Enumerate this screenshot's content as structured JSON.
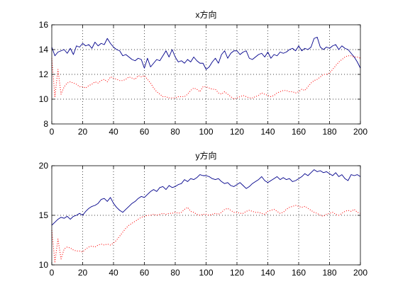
{
  "figure": {
    "background": "#ffffff",
    "axes_color": "#000000",
    "grid_color": "#000000",
    "series_colors": [
      "#00008b",
      "#ff0000"
    ]
  },
  "chart_data": [
    {
      "type": "line",
      "title": "x方向",
      "xlabel": "",
      "ylabel": "",
      "xlim": [
        0,
        200
      ],
      "ylim": [
        8,
        16
      ],
      "xticks": [
        0,
        20,
        40,
        60,
        80,
        100,
        120,
        140,
        160,
        180,
        200
      ],
      "yticks": [
        8,
        10,
        12,
        14,
        16
      ],
      "grid": true,
      "series": [
        {
          "style": "solid",
          "color": "#00008b",
          "x": [
            0,
            2,
            4,
            6,
            8,
            10,
            12,
            14,
            16,
            18,
            20,
            22,
            24,
            26,
            28,
            30,
            32,
            34,
            36,
            38,
            40,
            42,
            44,
            46,
            48,
            50,
            52,
            54,
            56,
            58,
            60,
            62,
            64,
            66,
            68,
            70,
            72,
            74,
            76,
            78,
            80,
            82,
            84,
            86,
            88,
            90,
            92,
            94,
            96,
            98,
            100,
            102,
            104,
            106,
            108,
            110,
            112,
            114,
            116,
            118,
            120,
            122,
            124,
            126,
            128,
            130,
            132,
            134,
            136,
            138,
            140,
            142,
            144,
            146,
            148,
            150,
            152,
            154,
            156,
            158,
            160,
            162,
            164,
            166,
            168,
            170,
            172,
            174,
            176,
            178,
            180,
            182,
            184,
            186,
            188,
            190,
            192,
            194,
            196,
            198,
            200
          ],
          "y": [
            14.2,
            13.5,
            13.8,
            13.9,
            14.0,
            13.7,
            14.1,
            13.6,
            14.3,
            14.2,
            14.5,
            14.3,
            14.4,
            14.1,
            14.6,
            14.3,
            14.5,
            14.4,
            14.9,
            14.5,
            14.2,
            14.0,
            13.9,
            13.5,
            13.6,
            13.4,
            13.2,
            13.1,
            13.3,
            13.2,
            12.5,
            13.3,
            12.6,
            12.9,
            13.2,
            13.1,
            13.5,
            13.9,
            13.4,
            14.0,
            13.4,
            13.0,
            13.1,
            12.9,
            13.2,
            13.0,
            13.4,
            13.1,
            12.9,
            12.9,
            12.4,
            12.6,
            13.0,
            13.3,
            12.9,
            13.6,
            13.9,
            13.3,
            13.7,
            13.9,
            13.9,
            13.6,
            13.8,
            13.9,
            13.3,
            13.2,
            13.4,
            13.6,
            13.7,
            13.4,
            13.8,
            13.3,
            13.6,
            13.5,
            13.8,
            13.7,
            13.8,
            14.0,
            14.1,
            13.9,
            14.3,
            13.9,
            14.1,
            14.0,
            14.2,
            14.9,
            15.0,
            14.2,
            14.0,
            14.2,
            14.1,
            14.3,
            14.4,
            14.0,
            14.3,
            14.1,
            14.0,
            13.7,
            13.4,
            13.0,
            12.5
          ]
        },
        {
          "style": "dotted",
          "color": "#ff0000",
          "x": [
            0,
            2,
            4,
            6,
            8,
            10,
            12,
            14,
            16,
            18,
            20,
            22,
            24,
            26,
            28,
            30,
            32,
            34,
            36,
            38,
            40,
            42,
            44,
            46,
            48,
            50,
            52,
            54,
            56,
            58,
            60,
            62,
            64,
            66,
            68,
            70,
            72,
            74,
            76,
            78,
            80,
            82,
            84,
            86,
            88,
            90,
            92,
            94,
            96,
            98,
            100,
            102,
            104,
            106,
            108,
            110,
            112,
            114,
            116,
            118,
            120,
            122,
            124,
            126,
            128,
            130,
            132,
            134,
            136,
            138,
            140,
            142,
            144,
            146,
            148,
            150,
            152,
            154,
            156,
            158,
            160,
            162,
            164,
            166,
            168,
            170,
            172,
            174,
            176,
            178,
            180,
            182,
            184,
            186,
            188,
            190,
            192,
            194,
            196,
            198,
            200
          ],
          "y": [
            13.3,
            10.2,
            12.4,
            10.4,
            11.0,
            11.3,
            11.4,
            11.3,
            11.2,
            11.0,
            11.0,
            10.9,
            11.1,
            11.2,
            11.4,
            11.3,
            11.5,
            11.6,
            11.4,
            11.8,
            11.7,
            11.6,
            11.5,
            11.5,
            11.6,
            11.8,
            11.7,
            11.6,
            11.9,
            11.8,
            11.9,
            11.6,
            11.3,
            10.9,
            10.6,
            10.4,
            10.2,
            10.2,
            10.1,
            10.1,
            10.1,
            10.2,
            10.2,
            10.2,
            10.4,
            10.7,
            10.9,
            10.8,
            10.6,
            11.0,
            11.0,
            10.9,
            10.8,
            10.8,
            10.5,
            10.4,
            10.6,
            10.4,
            10.2,
            10.0,
            10.1,
            10.2,
            10.3,
            10.2,
            10.1,
            10.1,
            10.2,
            10.3,
            10.5,
            10.4,
            10.3,
            10.2,
            10.3,
            10.5,
            10.6,
            10.7,
            10.7,
            10.6,
            10.6,
            10.5,
            10.6,
            10.8,
            10.7,
            11.0,
            11.3,
            11.5,
            11.6,
            11.8,
            12.0,
            12.0,
            12.1,
            12.4,
            12.7,
            13.0,
            13.2,
            13.4,
            13.5,
            13.5,
            13.4,
            13.4,
            13.3
          ]
        }
      ]
    },
    {
      "type": "line",
      "title": "y方向",
      "xlabel": "",
      "ylabel": "",
      "xlim": [
        0,
        200
      ],
      "ylim": [
        10,
        20
      ],
      "xticks": [
        0,
        20,
        40,
        60,
        80,
        100,
        120,
        140,
        160,
        180,
        200
      ],
      "yticks": [
        10,
        15,
        20
      ],
      "grid": true,
      "series": [
        {
          "style": "solid",
          "color": "#00008b",
          "x": [
            0,
            2,
            4,
            6,
            8,
            10,
            12,
            14,
            16,
            18,
            20,
            22,
            24,
            26,
            28,
            30,
            32,
            34,
            36,
            38,
            40,
            42,
            44,
            46,
            48,
            50,
            52,
            54,
            56,
            58,
            60,
            62,
            64,
            66,
            68,
            70,
            72,
            74,
            76,
            78,
            80,
            82,
            84,
            86,
            88,
            90,
            92,
            94,
            96,
            98,
            100,
            102,
            104,
            106,
            108,
            110,
            112,
            114,
            116,
            118,
            120,
            122,
            124,
            126,
            128,
            130,
            132,
            134,
            136,
            138,
            140,
            142,
            144,
            146,
            148,
            150,
            152,
            154,
            156,
            158,
            160,
            162,
            164,
            166,
            168,
            170,
            172,
            174,
            176,
            178,
            180,
            182,
            184,
            186,
            188,
            190,
            192,
            194,
            196,
            198,
            200
          ],
          "y": [
            14.0,
            14.3,
            14.6,
            14.8,
            14.7,
            14.9,
            14.6,
            14.9,
            15.0,
            15.2,
            15.0,
            15.4,
            15.7,
            15.9,
            16.0,
            16.2,
            16.6,
            16.7,
            16.4,
            16.8,
            16.2,
            15.8,
            15.5,
            15.3,
            15.6,
            15.9,
            16.2,
            16.4,
            16.7,
            16.9,
            16.8,
            17.1,
            17.4,
            17.6,
            17.4,
            17.8,
            17.9,
            17.6,
            18.0,
            17.8,
            17.9,
            18.1,
            18.2,
            18.6,
            18.4,
            18.7,
            18.6,
            18.8,
            19.1,
            19.0,
            19.0,
            18.9,
            18.7,
            18.6,
            18.7,
            18.4,
            18.2,
            18.3,
            18.0,
            17.9,
            18.1,
            18.3,
            18.0,
            17.7,
            17.9,
            18.2,
            18.4,
            18.6,
            18.9,
            18.5,
            18.3,
            18.5,
            18.7,
            18.9,
            18.6,
            18.8,
            18.6,
            18.7,
            18.4,
            18.5,
            18.7,
            18.9,
            19.2,
            19.0,
            19.3,
            19.6,
            19.4,
            19.5,
            19.3,
            19.4,
            19.2,
            19.0,
            19.3,
            18.9,
            19.1,
            18.7,
            18.5,
            19.1,
            19.0,
            19.1,
            18.9
          ]
        },
        {
          "style": "dotted",
          "color": "#ff0000",
          "x": [
            0,
            2,
            4,
            6,
            8,
            10,
            12,
            14,
            16,
            18,
            20,
            22,
            24,
            26,
            28,
            30,
            32,
            34,
            36,
            38,
            40,
            42,
            44,
            46,
            48,
            50,
            52,
            54,
            56,
            58,
            60,
            62,
            64,
            66,
            68,
            70,
            72,
            74,
            76,
            78,
            80,
            82,
            84,
            86,
            88,
            90,
            92,
            94,
            96,
            98,
            100,
            102,
            104,
            106,
            108,
            110,
            112,
            114,
            116,
            118,
            120,
            122,
            124,
            126,
            128,
            130,
            132,
            134,
            136,
            138,
            140,
            142,
            144,
            146,
            148,
            150,
            152,
            154,
            156,
            158,
            160,
            162,
            164,
            166,
            168,
            170,
            172,
            174,
            176,
            178,
            180,
            182,
            184,
            186,
            188,
            190,
            192,
            194,
            196,
            198,
            200
          ],
          "y": [
            13.5,
            10.3,
            12.6,
            10.6,
            11.6,
            11.8,
            11.7,
            11.5,
            11.4,
            11.4,
            11.3,
            11.6,
            11.8,
            11.9,
            11.8,
            12.0,
            12.1,
            12.0,
            12.1,
            12.0,
            12.2,
            12.5,
            12.9,
            13.3,
            13.7,
            14.0,
            14.2,
            14.4,
            14.6,
            14.8,
            14.9,
            15.0,
            15.0,
            15.1,
            15.0,
            15.1,
            15.2,
            15.1,
            15.2,
            15.2,
            15.3,
            15.2,
            15.3,
            15.6,
            15.8,
            15.4,
            15.3,
            15.1,
            15.0,
            15.1,
            15.1,
            15.0,
            15.1,
            15.2,
            15.1,
            15.3,
            15.6,
            15.7,
            15.5,
            15.3,
            15.3,
            15.2,
            15.2,
            15.4,
            15.5,
            15.4,
            15.3,
            15.3,
            15.2,
            15.1,
            15.4,
            15.5,
            15.6,
            15.4,
            15.2,
            15.3,
            15.6,
            15.8,
            15.9,
            16.0,
            15.9,
            15.8,
            15.9,
            15.7,
            15.5,
            15.3,
            15.2,
            15.0,
            14.9,
            15.1,
            15.2,
            15.3,
            15.1,
            15.0,
            15.2,
            15.4,
            15.5,
            15.4,
            15.6,
            15.3,
            15.2
          ]
        }
      ]
    }
  ]
}
